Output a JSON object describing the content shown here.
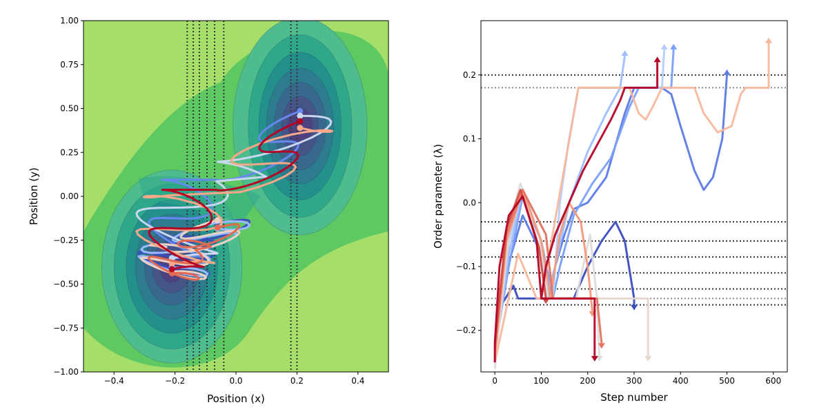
{
  "chart_data": [
    {
      "type": "contour_trajectories",
      "xlabel": "Position (x)",
      "ylabel": "Position (y)",
      "xlim": [
        -0.5,
        0.5
      ],
      "ylim": [
        -1.0,
        1.0
      ],
      "xticks": [
        -0.4,
        -0.2,
        0.0,
        0.2,
        0.4
      ],
      "xtick_labels": [
        "−0.4",
        "−0.2",
        "0.0",
        "0.2",
        "0.4"
      ],
      "yticks": [
        -1.0,
        -0.75,
        -0.5,
        -0.25,
        0.0,
        0.25,
        0.5,
        0.75,
        1.0
      ],
      "ytick_labels": [
        "−1.00",
        "−0.75",
        "−0.50",
        "−0.25",
        "0.00",
        "0.25",
        "0.50",
        "0.75",
        "1.00"
      ],
      "interface_positions_x": [
        -0.16,
        -0.14,
        -0.12,
        -0.095,
        -0.07,
        -0.04,
        0.18,
        0.2
      ],
      "minima": [
        {
          "x": -0.21,
          "y": -0.4
        },
        {
          "x": 0.21,
          "y": 0.4
        }
      ],
      "colormap": [
        "#440154",
        "#3b528b",
        "#21918c",
        "#5ec962",
        "#a6de6a"
      ],
      "trajectory_colors": [
        "#3b4cc0",
        "#6788ee",
        "#9abbff",
        "#c9d7f0",
        "#edd1c2",
        "#f7a889",
        "#e26952",
        "#b40426"
      ]
    },
    {
      "type": "line",
      "xlabel": "Step number",
      "ylabel": "Order parameter (λ)",
      "xlim": [
        -30,
        630
      ],
      "ylim": [
        -0.265,
        0.285
      ],
      "xticks": [
        0,
        100,
        200,
        300,
        400,
        500,
        600
      ],
      "xtick_labels": [
        "0",
        "100",
        "200",
        "300",
        "400",
        "500",
        "600"
      ],
      "yticks": [
        -0.2,
        -0.1,
        0.0,
        0.1,
        0.2
      ],
      "ytick_labels": [
        "−0.2",
        "−0.1",
        "0.0",
        "0.1",
        "0.2"
      ],
      "interfaces": [
        0.2,
        0.18,
        -0.03,
        -0.06,
        -0.085,
        -0.11,
        -0.135,
        -0.15,
        -0.16
      ],
      "series": [
        {
          "color": "#3b4cc0",
          "points": [
            [
              0,
              -0.25
            ],
            [
              5,
              -0.17
            ],
            [
              40,
              -0.13
            ],
            [
              50,
              -0.15
            ],
            [
              170,
              -0.15
            ],
            [
              200,
              -0.1
            ],
            [
              230,
              -0.06
            ],
            [
              260,
              -0.03
            ],
            [
              280,
              -0.06
            ],
            [
              300,
              -0.15
            ],
            [
              300,
              -0.16
            ]
          ],
          "end": {
            "x": 300,
            "y": -0.16,
            "dir": "down"
          }
        },
        {
          "color": "#5b7ae5",
          "points": [
            [
              0,
              -0.24
            ],
            [
              20,
              -0.12
            ],
            [
              60,
              -0.02
            ],
            [
              100,
              -0.08
            ],
            [
              115,
              -0.15
            ],
            [
              130,
              -0.1
            ],
            [
              150,
              -0.05
            ],
            [
              170,
              -0.01
            ],
            [
              200,
              0.0
            ],
            [
              240,
              0.04
            ],
            [
              280,
              0.14
            ],
            [
              300,
              0.18
            ],
            [
              360,
              0.18
            ],
            [
              380,
              0.17
            ],
            [
              400,
              0.12
            ],
            [
              430,
              0.05
            ],
            [
              450,
              0.02
            ],
            [
              470,
              0.04
            ],
            [
              490,
              0.1
            ],
            [
              500,
              0.2
            ]
          ],
          "end": {
            "x": 500,
            "y": 0.2,
            "dir": "up"
          }
        },
        {
          "color": "#7b9ff9",
          "points": [
            [
              0,
              -0.23
            ],
            [
              30,
              -0.1
            ],
            [
              60,
              0.01
            ],
            [
              100,
              -0.06
            ],
            [
              125,
              -0.15
            ],
            [
              140,
              -0.1
            ],
            [
              170,
              -0.02
            ],
            [
              210,
              0.03
            ],
            [
              250,
              0.07
            ],
            [
              290,
              0.15
            ],
            [
              310,
              0.18
            ],
            [
              380,
              0.18
            ],
            [
              385,
              0.24
            ]
          ],
          "end": {
            "x": 385,
            "y": 0.24,
            "dir": "up"
          }
        },
        {
          "color": "#9ebeff",
          "points": [
            [
              0,
              -0.24
            ],
            [
              30,
              -0.08
            ],
            [
              60,
              0.02
            ],
            [
              100,
              -0.06
            ],
            [
              110,
              -0.15
            ],
            [
              130,
              -0.1
            ],
            [
              160,
              0.0
            ],
            [
              200,
              0.08
            ],
            [
              240,
              0.14
            ],
            [
              270,
              0.18
            ],
            [
              280,
              0.23
            ]
          ],
          "end": {
            "x": 280,
            "y": 0.23,
            "dir": "up"
          }
        },
        {
          "color": "#b5cdfa",
          "points": [
            [
              0,
              -0.25
            ],
            [
              30,
              -0.06
            ],
            [
              60,
              0.02
            ],
            [
              110,
              -0.05
            ],
            [
              125,
              -0.15
            ],
            [
              140,
              0.0
            ],
            [
              160,
              0.1
            ],
            [
              180,
              0.18
            ],
            [
              360,
              0.18
            ],
            [
              365,
              0.24
            ]
          ],
          "end": {
            "x": 365,
            "y": 0.24,
            "dir": "up"
          }
        },
        {
          "color": "#dddcdc",
          "points": [
            [
              0,
              -0.26
            ],
            [
              25,
              -0.05
            ],
            [
              55,
              0.03
            ],
            [
              95,
              -0.05
            ],
            [
              115,
              -0.15
            ],
            [
              175,
              -0.15
            ],
            [
              205,
              -0.05
            ],
            [
              220,
              -0.15
            ],
            [
              225,
              -0.24
            ]
          ],
          "end": {
            "x": 225,
            "y": -0.24,
            "dir": "down"
          }
        },
        {
          "color": "#e8d6cc",
          "points": [
            [
              0,
              -0.25
            ],
            [
              30,
              -0.05
            ],
            [
              60,
              0.02
            ],
            [
              95,
              -0.07
            ],
            [
              110,
              -0.15
            ],
            [
              330,
              -0.15
            ],
            [
              330,
              -0.24
            ]
          ],
          "end": {
            "x": 330,
            "y": -0.24,
            "dir": "down"
          }
        },
        {
          "color": "#f7b89c",
          "points": [
            [
              0,
              -0.25
            ],
            [
              50,
              -0.08
            ],
            [
              90,
              -0.15
            ],
            [
              100,
              -0.15
            ],
            [
              180,
              0.18
            ],
            [
              290,
              0.18
            ],
            [
              310,
              0.14
            ],
            [
              325,
              0.13
            ],
            [
              340,
              0.15
            ],
            [
              360,
              0.18
            ],
            [
              430,
              0.18
            ],
            [
              450,
              0.14
            ],
            [
              480,
              0.11
            ],
            [
              510,
              0.12
            ],
            [
              530,
              0.17
            ],
            [
              540,
              0.18
            ],
            [
              590,
              0.18
            ],
            [
              590,
              0.25
            ]
          ],
          "end": {
            "x": 590,
            "y": 0.25,
            "dir": "up"
          }
        },
        {
          "color": "#f4987a",
          "points": [
            [
              0,
              -0.24
            ],
            [
              25,
              -0.06
            ],
            [
              60,
              0.02
            ],
            [
              100,
              -0.06
            ],
            [
              120,
              -0.15
            ],
            [
              140,
              -0.05
            ],
            [
              160,
              -0.0
            ],
            [
              185,
              -0.03
            ],
            [
              200,
              -0.1
            ],
            [
              210,
              -0.17
            ]
          ],
          "end": {
            "x": 210,
            "y": -0.17,
            "dir": "down"
          }
        },
        {
          "color": "#e5745f",
          "points": [
            [
              0,
              -0.23
            ],
            [
              25,
              -0.05
            ],
            [
              60,
              0.02
            ],
            [
              110,
              -0.05
            ],
            [
              125,
              -0.15
            ],
            [
              220,
              -0.15
            ],
            [
              230,
              -0.22
            ]
          ],
          "end": {
            "x": 230,
            "y": -0.22,
            "dir": "down"
          }
        },
        {
          "color": "#d24b40",
          "points": [
            [
              0,
              -0.22
            ],
            [
              25,
              -0.04
            ],
            [
              55,
              0.02
            ],
            [
              95,
              -0.07
            ],
            [
              110,
              -0.15
            ]
          ],
          "end": {
            "x": 110,
            "y": -0.15,
            "dir": "down"
          }
        },
        {
          "color": "#b40426",
          "points": [
            [
              0,
              -0.25
            ],
            [
              0,
              -0.22
            ],
            [
              10,
              -0.1
            ],
            [
              30,
              -0.02
            ],
            [
              60,
              0.01
            ],
            [
              90,
              -0.06
            ],
            [
              100,
              -0.15
            ],
            [
              110,
              -0.1
            ],
            [
              130,
              -0.05
            ],
            [
              160,
              0.0
            ],
            [
              190,
              0.05
            ],
            [
              220,
              0.09
            ],
            [
              250,
              0.13
            ],
            [
              270,
              0.16
            ],
            [
              280,
              0.18
            ],
            [
              350,
              0.18
            ],
            [
              350,
              0.22
            ]
          ],
          "end": {
            "x": 350,
            "y": 0.22,
            "dir": "up"
          }
        },
        {
          "color": "#b40426",
          "points": [
            [
              100,
              -0.15
            ],
            [
              215,
              -0.15
            ],
            [
              215,
              -0.24
            ]
          ],
          "end": {
            "x": 215,
            "y": -0.24,
            "dir": "down"
          }
        }
      ]
    }
  ]
}
